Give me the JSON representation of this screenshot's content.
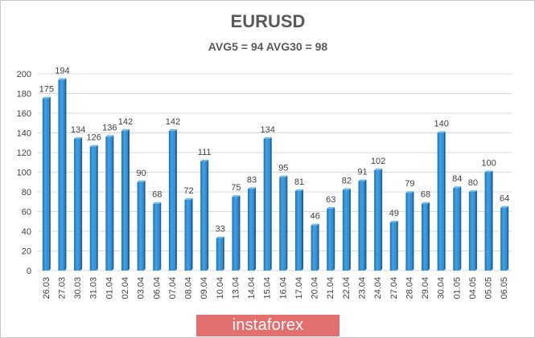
{
  "chart_data": {
    "type": "bar",
    "title": "EURUSD",
    "subtitle": "AVG5 = 94 AVG30 = 98",
    "xlabel": "",
    "ylabel": "",
    "ylim": [
      0,
      200
    ],
    "yticks": [
      0,
      20,
      40,
      60,
      80,
      100,
      120,
      140,
      160,
      180,
      200
    ],
    "grid": true,
    "legend": "none",
    "bar_color": "#2b8ed6",
    "categories": [
      "26.03",
      "27.03",
      "30.03",
      "31.03",
      "01.04",
      "02.04",
      "03.04",
      "06.04",
      "07.04",
      "08.04",
      "09.04",
      "10.04",
      "13.04",
      "14.04",
      "15.04",
      "16.04",
      "17.04",
      "20.04",
      "21.04",
      "22.04",
      "23.04",
      "24.04",
      "27.04",
      "28.04",
      "29.04",
      "30.04",
      "01.05",
      "04.05",
      "05.05",
      "06.05"
    ],
    "values": [
      175,
      194,
      134,
      126,
      136,
      142,
      90,
      68,
      142,
      72,
      111,
      33,
      75,
      83,
      134,
      95,
      81,
      46,
      63,
      82,
      91,
      102,
      49,
      79,
      68,
      140,
      84,
      80,
      100,
      64
    ]
  },
  "watermark": {
    "text": "instaforex",
    "color": "#e46f6f"
  }
}
